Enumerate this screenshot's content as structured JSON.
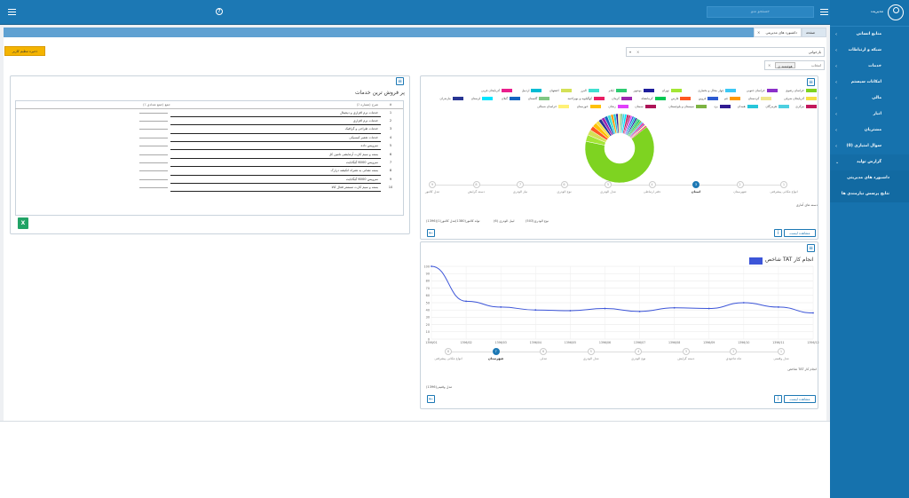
{
  "topbar": {
    "help_icon": "help-circle-icon",
    "search_placeholder": "جستجو منو",
    "menu_icon": "hamburger-icon"
  },
  "sidebar": {
    "user": "مدیریت",
    "items": [
      {
        "label": "منابع انسانی"
      },
      {
        "label": "شبکه و ارتباطات"
      },
      {
        "label": "خدمات"
      },
      {
        "label": "امکانات سیستم"
      },
      {
        "label": "مالی"
      },
      {
        "label": "انبار"
      },
      {
        "label": "مشتریان"
      },
      {
        "label": "سوال امتیازی (0)"
      },
      {
        "label": "گزارش تولید"
      },
      {
        "label": "داشبورد های مدیریتی"
      },
      {
        "label": "نتایج پرسش نیازمندی ها"
      }
    ]
  },
  "tabs": {
    "active": "صفحه اصلی",
    "second": "داشبورد های مدیریتی"
  },
  "toolbar": {
    "apply_button": "ذخیره تنظیم کاربر"
  },
  "filters": {
    "select1_value": "بازخوانی",
    "select2_label": "انتخاب",
    "select2_chip": "هوشمند ی"
  },
  "sales_panel": {
    "title": "پر فروش ترین خدمات",
    "columns": [
      "#",
      "شرح (شماره ٪)",
      "جمع (جمع تعدادی ٪)"
    ],
    "rows": [
      {
        "n": "1",
        "name": "خدمات نرم افزاری و دیجیتال",
        "val": ""
      },
      {
        "n": "2",
        "name": "خدمات نرم افزاری",
        "val": ""
      },
      {
        "n": "3",
        "name": "خدمات طراحی و گرافیک",
        "val": ""
      },
      {
        "n": "4",
        "name": "خدمات تعمیر کیسیکی",
        "val": ""
      },
      {
        "n": "5",
        "name": "سرویس داده",
        "val": ""
      },
      {
        "n": "6",
        "name": "بسته و سیم کارت آزمایشی تامین کل",
        "val": ""
      },
      {
        "n": "7",
        "name": "سرویس 6000 گیگابایت",
        "val": ""
      },
      {
        "n": "8",
        "name": "بسته نشانی به همراه انکیشه درارک",
        "val": ""
      },
      {
        "n": "9",
        "name": "سرویس 6000 گیگابایت",
        "val": ""
      },
      {
        "n": "10",
        "name": "بسته و سیم کارت مستمر فعال کالا",
        "val": ""
      }
    ]
  },
  "pie_panel": {
    "legend": [
      {
        "label": "خراسان رضوی",
        "color": "#7ed321"
      },
      {
        "label": "خراسان جنوبی",
        "color": "#8b2fc9"
      },
      {
        "label": "چهار محال و بختیاری",
        "color": "#3cc8f5"
      },
      {
        "label": "تهران",
        "color": "#a3e635"
      },
      {
        "label": "بوشهر",
        "color": "#1e1e9c"
      },
      {
        "label": "ایلام",
        "color": "#2ecc71"
      },
      {
        "label": "البرز",
        "color": "#40e0d0"
      },
      {
        "label": "اصفهان",
        "color": "#d4e157"
      },
      {
        "label": "اردبیل",
        "color": "#00bcd4"
      },
      {
        "label": "آذربایجان غربی",
        "color": "#e91e8c"
      },
      {
        "label": "آذربایجان شرقی",
        "color": "#f5e042"
      },
      {
        "label": "کردستان",
        "color": "#f0e68c"
      },
      {
        "label": "قم",
        "color": "#ff9800"
      },
      {
        "label": "قزوین",
        "color": "#2d5bd1"
      },
      {
        "label": "فارس",
        "color": "#ff5722"
      },
      {
        "label": "کرمانشاه",
        "color": "#00c853"
      },
      {
        "label": "کرمان",
        "color": "#9c27b0"
      },
      {
        "label": "کهگیلویه و بویراحمد",
        "color": "#e91e63"
      },
      {
        "label": "گلستان",
        "color": "#81c784"
      },
      {
        "label": "گیلان",
        "color": "#1565c0"
      },
      {
        "label": "لرستان",
        "color": "#00e5ff"
      },
      {
        "label": "مازندران",
        "color": "#283593"
      },
      {
        "label": "مرکزی",
        "color": "#c2185b"
      },
      {
        "label": "هرمزگان",
        "color": "#4dd0e1"
      },
      {
        "label": "همدان",
        "color": "#26c6da"
      },
      {
        "label": "یزد",
        "color": "#311b92"
      },
      {
        "label": "سیستان و بلوچستان",
        "color": "#7cb342"
      },
      {
        "label": "سمنان",
        "color": "#ad1457"
      },
      {
        "label": "زنجان",
        "color": "#e040fb"
      },
      {
        "label": "خوزستان",
        "color": "#ffc107"
      },
      {
        "label": "خراسان شمالی",
        "color": "#fff176"
      }
    ],
    "steps": [
      "انواع مکانی پیشرفتی",
      "شهرستان",
      "استان",
      "دفتر ارتباطی",
      "مدل الودری",
      "نوع الودری",
      "نیاز الودری",
      "دسته گرایش",
      "مدل کالتور"
    ],
    "active_step": "استان",
    "dimension_title": "دسته های آماری",
    "stats": [
      "(503)نوع الودری",
      "(6) لیبل الودری",
      "(1380)تولد کالتور",
      "مدل کالتور(1)(1396)"
    ],
    "show_all_button": "مشاهده لیست"
  },
  "line_panel": {
    "title": "شاخص TAT انجام کار",
    "legend_color": "#3c55d8",
    "steps": [
      "مدل وقتیتی",
      "ماه ماجودی",
      "دسته گرایش",
      "نوع الودری",
      "مدل الودری",
      "مدلی",
      "شهرستان",
      "انواع مکانی پیشرفتی"
    ],
    "active_step": "ماه وقتیتی",
    "series_label": "شاخص TAT انجام کار",
    "footer_stat": "مدل وقتیتی(1396)",
    "show_all_button": "مشاهده لیست"
  },
  "chart_data": [
    {
      "type": "pie",
      "categories": [
        "خراسان رضوی",
        "تهران",
        "اصفهان",
        "فارس",
        "خوزستان",
        "آذربایجان شرقی",
        "مازندران",
        "کرمان",
        "گیلان",
        "البرز",
        "قم",
        "همدان",
        "یزد",
        "کردستان",
        "گلستان",
        "هرمزگان",
        "لرستان",
        "مرکزی",
        "سمنان",
        "زنجان",
        "قزوین",
        "اردبیل",
        "بوشهر",
        "ایلام",
        "کرمانشاه",
        "سیستان و بلوچستان",
        "چهار محال و بختیاری",
        "آذربایجان غربی",
        "خراسان جنوبی",
        "خراسان شمالی",
        "کهگیلویه و بویراحمد"
      ],
      "values": [
        62,
        3,
        2.5,
        2,
        2,
        1.5,
        1.5,
        1.5,
        1.5,
        1.5,
        1.2,
        1.2,
        1,
        1,
        1,
        1,
        1,
        1,
        0.8,
        0.8,
        0.8,
        0.8,
        0.8,
        0.8,
        0.8,
        0.8,
        0.7,
        0.7,
        0.6,
        0.6,
        0.6
      ],
      "colors": [
        "#7ed321",
        "#a3e635",
        "#d4e157",
        "#ff5722",
        "#ffc107",
        "#f5e042",
        "#283593",
        "#9c27b0",
        "#1565c0",
        "#40e0d0",
        "#ff9800",
        "#26c6da",
        "#311b92",
        "#f0e68c",
        "#81c784",
        "#4dd0e1",
        "#00e5ff",
        "#c2185b",
        "#ad1457",
        "#e040fb",
        "#2d5bd1",
        "#00bcd4",
        "#1e1e9c",
        "#2ecc71",
        "#00c853",
        "#7cb342",
        "#3cc8f5",
        "#e91e8c",
        "#8b2fc9",
        "#fff176",
        "#e91e63"
      ]
    },
    {
      "type": "line",
      "x": [
        "1396/01",
        "1396/02",
        "1396/03",
        "1396/04",
        "1396/05",
        "1396/06",
        "1396/07",
        "1396/08",
        "1396/09",
        "1396/10",
        "1396/11",
        "1396/12"
      ],
      "series": [
        {
          "name": "شاخص TAT انجام کار",
          "values": [
            100,
            52,
            44,
            40,
            39,
            42,
            38,
            43,
            42,
            50,
            44,
            36
          ]
        }
      ],
      "ylim": [
        0,
        100
      ],
      "yticks": [
        0,
        10,
        20,
        30,
        40,
        50,
        60,
        70,
        80,
        90,
        100
      ],
      "grid": true
    }
  ]
}
